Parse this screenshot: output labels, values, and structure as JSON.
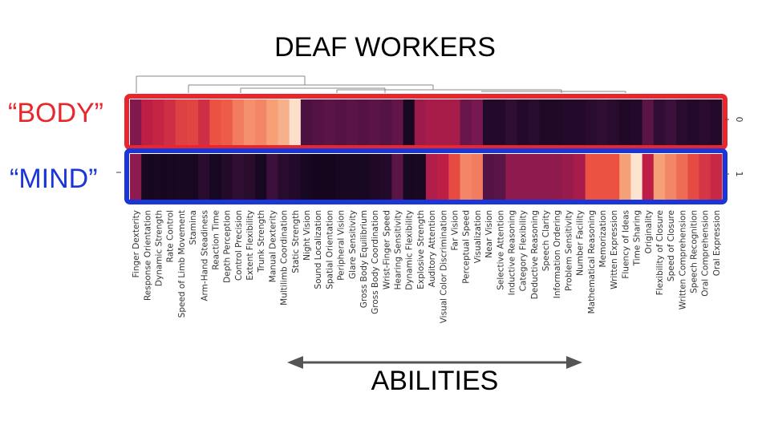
{
  "title": "DEAF WORKERS",
  "row_labels": {
    "body": "“BODY”",
    "mind": "“MIND”"
  },
  "axis_caption": "ABILITIES",
  "colors": {
    "body_box": "#e8262b",
    "mind_box": "#1a35d8",
    "scale_low": "#0b0417",
    "scale_high": "#fdf0dd"
  },
  "chart_data": {
    "type": "heatmap",
    "title": "",
    "rows": [
      "0",
      "1"
    ],
    "columns": [
      "Finger Dexterity",
      "Response Orientation",
      "Dynamic Strength",
      "Rate Control",
      "Speed of Limb Movement",
      "Stamina",
      "Arm-Hand Steadiness",
      "Reaction Time",
      "Depth Perception",
      "Control Precision",
      "Extent Flexibility",
      "Trunk Strength",
      "Manual Dexterity",
      "Multilimb Coordination",
      "Static Strength",
      "Night Vision",
      "Sound Localization",
      "Spatial Orientation",
      "Peripheral Vision",
      "Glare Sensitivity",
      "Gross Body Equilibrium",
      "Gross Body Coordination",
      "Wrist-Finger Speed",
      "Hearing Sensitivity",
      "Dynamic Flexibility",
      "Explosive Strength",
      "Auditory Attention",
      "Visual Color Discrimination",
      "Far Vision",
      "Perceptual Speed",
      "Visualization",
      "Near Vision",
      "Selective Attention",
      "Inductive Reasoning",
      "Category Flexibility",
      "Deductive Reasoning",
      "Speech Clarity",
      "Information Ordering",
      "Problem Sensitivity",
      "Number Facility",
      "Mathematical Reasoning",
      "Memorization",
      "Written Expression",
      "Fluency of Ideas",
      "Time Sharing",
      "Originality",
      "Flexibility of Closure",
      "Speed of Closure",
      "Written Comprehension",
      "Speech Recognition",
      "Oral Comprehension",
      "Oral Expression"
    ],
    "values": [
      [
        0.42,
        0.55,
        0.57,
        0.6,
        0.65,
        0.66,
        0.6,
        0.7,
        0.72,
        0.78,
        0.82,
        0.8,
        0.85,
        0.88,
        0.97,
        0.25,
        0.28,
        0.3,
        0.28,
        0.3,
        0.28,
        0.3,
        0.28,
        0.33,
        0.05,
        0.48,
        0.5,
        0.5,
        0.5,
        0.35,
        0.4,
        0.1,
        0.1,
        0.15,
        0.1,
        0.12,
        0.08,
        0.08,
        0.1,
        0.1,
        0.12,
        0.15,
        0.12,
        0.08,
        0.1,
        0.3,
        0.15,
        0.2,
        0.12,
        0.1,
        0.12,
        0.1
      ],
      [
        0.45,
        0.05,
        0.05,
        0.05,
        0.06,
        0.05,
        0.12,
        0.05,
        0.1,
        0.15,
        0.12,
        0.05,
        0.2,
        0.12,
        0.1,
        0.05,
        0.04,
        0.04,
        0.05,
        0.06,
        0.05,
        0.08,
        0.1,
        0.3,
        0.05,
        0.06,
        0.52,
        0.55,
        0.68,
        0.8,
        0.78,
        0.28,
        0.3,
        0.45,
        0.45,
        0.45,
        0.45,
        0.45,
        0.47,
        0.5,
        0.7,
        0.7,
        0.7,
        0.85,
        0.98,
        0.55,
        0.85,
        0.8,
        0.75,
        0.68,
        0.62,
        0.58
      ]
    ],
    "color_scale": "dark-purple to light-cream",
    "legend": "none"
  }
}
